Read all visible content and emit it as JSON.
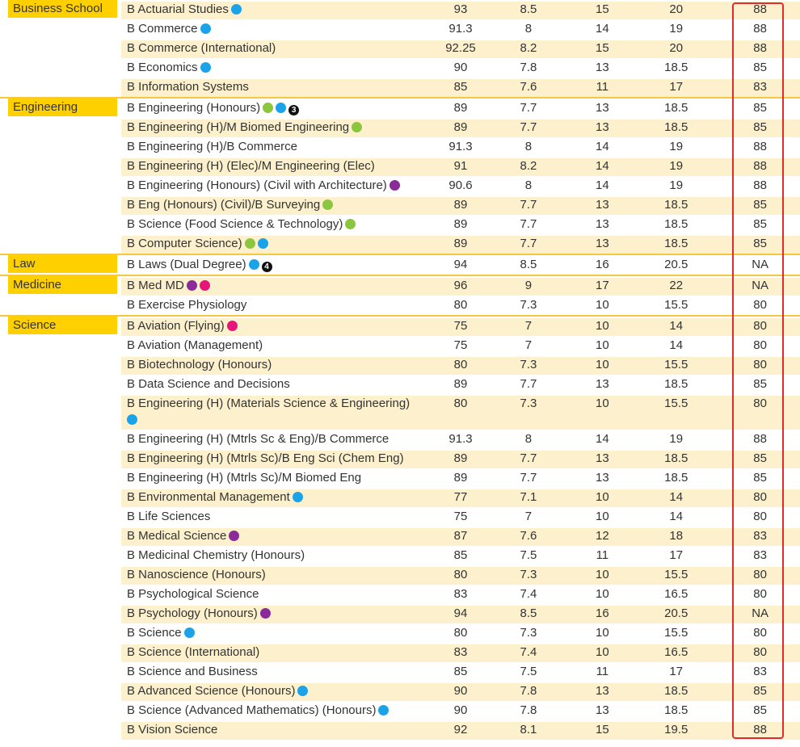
{
  "colors": {
    "faculty_bg": "#ffd000",
    "row_alt": "#fdf1cd",
    "highlight_box": "#e32b2b",
    "dot_blue": "#1aa3e8",
    "dot_green": "#8cc63f",
    "dot_purple": "#8b2a99",
    "dot_pink": "#e6157a"
  },
  "groups": [
    {
      "faculty": "Business School",
      "rows": [
        {
          "name": "B Actuarial Studies",
          "dots": [
            "blue"
          ],
          "v": [
            "93",
            "8.5",
            "15",
            "20",
            "88"
          ]
        },
        {
          "name": "B Commerce",
          "dots": [
            "blue"
          ],
          "v": [
            "91.3",
            "8",
            "14",
            "19",
            "88"
          ]
        },
        {
          "name": "B Commerce (International)",
          "dots": [],
          "v": [
            "92.25",
            "8.2",
            "15",
            "20",
            "88"
          ]
        },
        {
          "name": "B Economics",
          "dots": [
            "blue"
          ],
          "v": [
            "90",
            "7.8",
            "13",
            "18.5",
            "85"
          ]
        },
        {
          "name": "B Information Systems",
          "dots": [],
          "v": [
            "85",
            "7.6",
            "11",
            "17",
            "83"
          ]
        }
      ]
    },
    {
      "faculty": "Engineering",
      "rows": [
        {
          "name": "B Engineering (Honours)",
          "dots": [
            "green",
            "blue"
          ],
          "badge": "3",
          "v": [
            "89",
            "7.7",
            "13",
            "18.5",
            "85"
          ]
        },
        {
          "name": "B Engineering (H)/M Biomed Engineering",
          "dots": [
            "green"
          ],
          "v": [
            "89",
            "7.7",
            "13",
            "18.5",
            "85"
          ]
        },
        {
          "name": "B Engineering (H)/B Commerce",
          "dots": [],
          "v": [
            "91.3",
            "8",
            "14",
            "19",
            "88"
          ]
        },
        {
          "name": "B Engineering (H) (Elec)/M Engineering (Elec)",
          "dots": [],
          "v": [
            "91",
            "8.2",
            "14",
            "19",
            "88"
          ]
        },
        {
          "name": "B Engineering (Honours) (Civil with Architecture)",
          "dots": [
            "purple"
          ],
          "v": [
            "90.6",
            "8",
            "14",
            "19",
            "88"
          ]
        },
        {
          "name": "B Eng (Honours) (Civil)/B Surveying",
          "dots": [
            "green"
          ],
          "v": [
            "89",
            "7.7",
            "13",
            "18.5",
            "85"
          ]
        },
        {
          "name": "B Science (Food Science & Technology)",
          "dots": [
            "green"
          ],
          "v": [
            "89",
            "7.7",
            "13",
            "18.5",
            "85"
          ]
        },
        {
          "name": "B Computer Science)",
          "dots": [
            "green",
            "blue"
          ],
          "v": [
            "89",
            "7.7",
            "13",
            "18.5",
            "85"
          ]
        }
      ]
    },
    {
      "faculty": "Law",
      "rows": [
        {
          "name": "B Laws (Dual Degree)",
          "dots": [
            "blue"
          ],
          "badge": "4",
          "v": [
            "94",
            "8.5",
            "16",
            "20.5",
            "NA"
          ]
        }
      ]
    },
    {
      "faculty": "Medicine",
      "rows": [
        {
          "name": "B Med MD",
          "dots": [
            "purple",
            "pink"
          ],
          "v": [
            "96",
            "9",
            "17",
            "22",
            "NA"
          ]
        },
        {
          "name": "B Exercise Physiology",
          "dots": [],
          "v": [
            "80",
            "7.3",
            "10",
            "15.5",
            "80"
          ]
        }
      ]
    },
    {
      "faculty": "Science",
      "rows": [
        {
          "name": "B Aviation (Flying)",
          "dots": [
            "pink"
          ],
          "v": [
            "75",
            "7",
            "10",
            "14",
            "80"
          ]
        },
        {
          "name": "B Aviation (Management)",
          "dots": [],
          "v": [
            "75",
            "7",
            "10",
            "14",
            "80"
          ]
        },
        {
          "name": "B Biotechnology (Honours)",
          "dots": [],
          "v": [
            "80",
            "7.3",
            "10",
            "15.5",
            "80"
          ]
        },
        {
          "name": "B Data Science and Decisions",
          "dots": [],
          "v": [
            "89",
            "7.7",
            "13",
            "18.5",
            "85"
          ]
        },
        {
          "name": "B Engineering (H) (Materials Science & Engineering)",
          "dots": [
            "blue"
          ],
          "wrap": true,
          "v": [
            "80",
            "7.3",
            "10",
            "15.5",
            "80"
          ]
        },
        {
          "name": "B Engineering (H) (Mtrls Sc & Eng)/B Commerce",
          "dots": [],
          "v": [
            "91.3",
            "8",
            "14",
            "19",
            "88"
          ]
        },
        {
          "name": "B Engineering (H) (Mtrls Sc)/B Eng Sci (Chem Eng)",
          "dots": [],
          "v": [
            "89",
            "7.7",
            "13",
            "18.5",
            "85"
          ]
        },
        {
          "name": "B Engineering (H) (Mtrls Sc)/M Biomed Eng",
          "dots": [],
          "v": [
            "89",
            "7.7",
            "13",
            "18.5",
            "85"
          ]
        },
        {
          "name": "B Environmental Management",
          "dots": [
            "blue"
          ],
          "v": [
            "77",
            "7.1",
            "10",
            "14",
            "80"
          ]
        },
        {
          "name": "B Life Sciences",
          "dots": [],
          "v": [
            "75",
            "7",
            "10",
            "14",
            "80"
          ]
        },
        {
          "name": "B Medical Science",
          "dots": [
            "purple"
          ],
          "v": [
            "87",
            "7.6",
            "12",
            "18",
            "83"
          ]
        },
        {
          "name": "B Medicinal Chemistry (Honours)",
          "dots": [],
          "v": [
            "85",
            "7.5",
            "11",
            "17",
            "83"
          ]
        },
        {
          "name": "B Nanoscience (Honours)",
          "dots": [],
          "v": [
            "80",
            "7.3",
            "10",
            "15.5",
            "80"
          ]
        },
        {
          "name": "B Psychological Science",
          "dots": [],
          "v": [
            "83",
            "7.4",
            "10",
            "16.5",
            "80"
          ]
        },
        {
          "name": "B Psychology (Honours)",
          "dots": [
            "purple"
          ],
          "v": [
            "94",
            "8.5",
            "16",
            "20.5",
            "NA"
          ]
        },
        {
          "name": "B Science",
          "dots": [
            "blue"
          ],
          "v": [
            "80",
            "7.3",
            "10",
            "15.5",
            "80"
          ]
        },
        {
          "name": "B Science (International)",
          "dots": [],
          "v": [
            "83",
            "7.4",
            "10",
            "16.5",
            "80"
          ]
        },
        {
          "name": "B Science and Business",
          "dots": [],
          "v": [
            "85",
            "7.5",
            "11",
            "17",
            "83"
          ]
        },
        {
          "name": "B Advanced Science (Honours)",
          "dots": [
            "blue"
          ],
          "v": [
            "90",
            "7.8",
            "13",
            "18.5",
            "85"
          ]
        },
        {
          "name": "B Science (Advanced Mathematics) (Honours)",
          "dots": [
            "blue"
          ],
          "v": [
            "90",
            "7.8",
            "13",
            "18.5",
            "85"
          ]
        },
        {
          "name": "B Vision Science",
          "dots": [],
          "v": [
            "92",
            "8.1",
            "15",
            "19.5",
            "88"
          ]
        }
      ]
    }
  ]
}
